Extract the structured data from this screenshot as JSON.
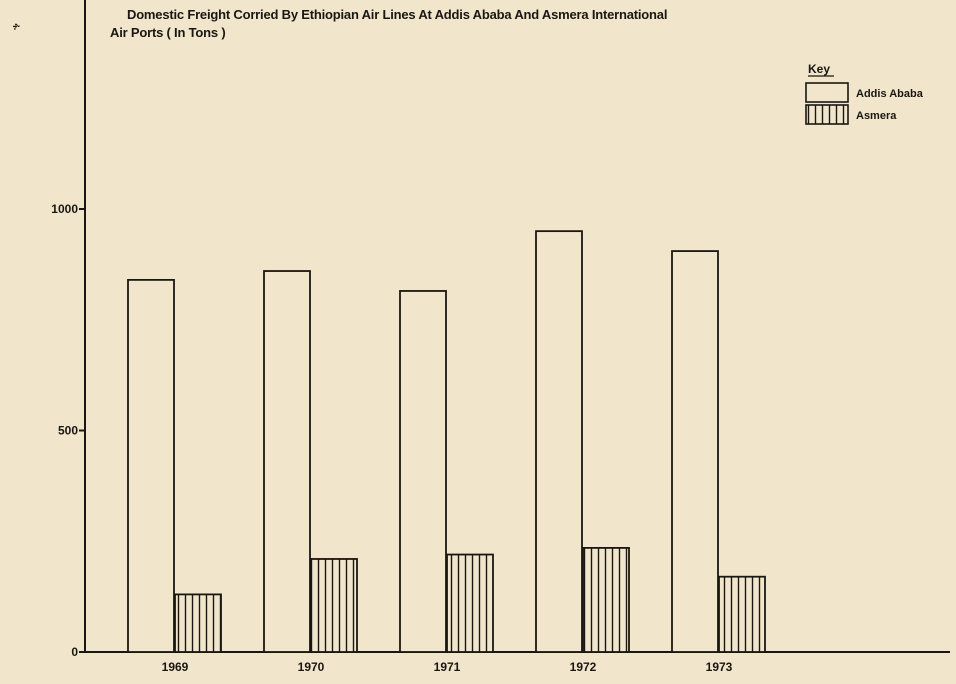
{
  "chart_data": {
    "type": "bar",
    "title": "Domestic Freight Corried By Ethiopian Air Lines At Addis Ababa And Asmera International",
    "subtitle": "Air Ports ( In Tons )",
    "categories": [
      "1969",
      "1970",
      "1971",
      "1972",
      "1973"
    ],
    "series": [
      {
        "name": "Addis Ababa",
        "values": [
          840,
          860,
          815,
          950,
          905
        ],
        "fill": "none"
      },
      {
        "name": "Asmera",
        "values": [
          130,
          210,
          220,
          235,
          170
        ],
        "fill": "vertical-hatch"
      }
    ],
    "y_ticks": [
      "0",
      "500",
      "1000"
    ],
    "ylim": [
      0,
      1400
    ],
    "xlabel": "",
    "ylabel": "",
    "grid": false,
    "legend": {
      "title": "Key",
      "placement": "top-right"
    }
  },
  "margin_mark": "ፋ"
}
